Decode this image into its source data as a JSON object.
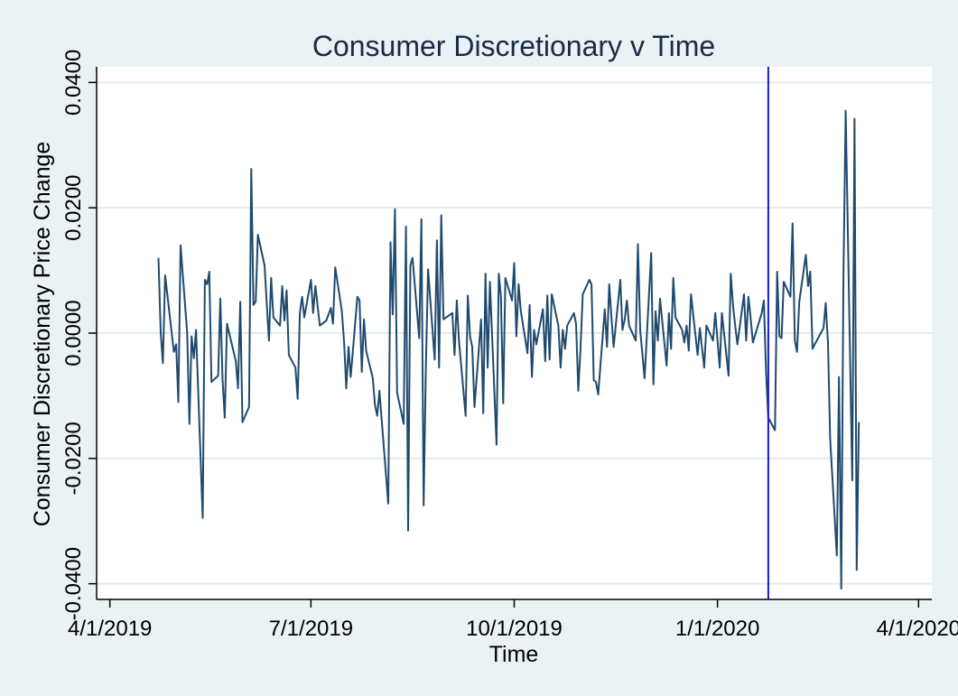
{
  "chart_data": {
    "type": "line",
    "title": "Consumer Discretionary v Time",
    "xlabel": "Time",
    "ylabel": "Consumer Discretionary Price Change",
    "x_ticks": [
      {
        "date": "2019-04-01",
        "label": "4/1/2019"
      },
      {
        "date": "2019-07-01",
        "label": "7/1/2019"
      },
      {
        "date": "2019-10-01",
        "label": "10/1/2019"
      },
      {
        "date": "2020-01-01",
        "label": "1/1/2020"
      },
      {
        "date": "2020-04-01",
        "label": "4/1/2020"
      }
    ],
    "y_ticks": [
      {
        "value": -0.04,
        "label": "-0.0400"
      },
      {
        "value": -0.02,
        "label": "-0.0200"
      },
      {
        "value": 0.0,
        "label": "0.0000"
      },
      {
        "value": 0.02,
        "label": "0.0200"
      },
      {
        "value": 0.04,
        "label": "0.0400"
      }
    ],
    "xlim": [
      "2019-03-26",
      "2020-04-07"
    ],
    "ylim": [
      -0.0425,
      0.0425
    ],
    "grid": true,
    "line_color": "#1f4a6e",
    "vline": {
      "date": "2020-01-24",
      "color": "#1a1acc"
    },
    "series": [
      {
        "points": [
          [
            "2019-04-23",
            0.012
          ],
          [
            "2019-04-24",
            0.0
          ],
          [
            "2019-04-25",
            -0.0048
          ],
          [
            "2019-04-26",
            0.0092
          ],
          [
            "2019-04-29",
            0.0
          ],
          [
            "2019-04-30",
            -0.003
          ],
          [
            "2019-05-01",
            -0.0018
          ],
          [
            "2019-05-02",
            -0.011
          ],
          [
            "2019-05-03",
            0.014
          ],
          [
            "2019-05-06",
            0.0
          ],
          [
            "2019-05-07",
            -0.0145
          ],
          [
            "2019-05-08",
            -0.0005
          ],
          [
            "2019-05-09",
            -0.004
          ],
          [
            "2019-05-10",
            0.0005
          ],
          [
            "2019-05-13",
            -0.0295
          ],
          [
            "2019-05-14",
            0.0085
          ],
          [
            "2019-05-15",
            0.0078
          ],
          [
            "2019-05-16",
            0.0098
          ],
          [
            "2019-05-17",
            -0.0078
          ],
          [
            "2019-05-20",
            -0.0068
          ],
          [
            "2019-05-21",
            0.0055
          ],
          [
            "2019-05-22",
            -0.0075
          ],
          [
            "2019-05-23",
            -0.0135
          ],
          [
            "2019-05-24",
            0.0015
          ],
          [
            "2019-05-28",
            -0.0045
          ],
          [
            "2019-05-29",
            -0.0088
          ],
          [
            "2019-05-30",
            0.005
          ],
          [
            "2019-05-31",
            -0.0142
          ],
          [
            "2019-06-03",
            -0.0118
          ],
          [
            "2019-06-04",
            0.0262
          ],
          [
            "2019-06-05",
            0.0045
          ],
          [
            "2019-06-06",
            0.005
          ],
          [
            "2019-06-07",
            0.0157
          ],
          [
            "2019-06-10",
            0.0108
          ],
          [
            "2019-06-11",
            0.0048
          ],
          [
            "2019-06-12",
            -0.0012
          ],
          [
            "2019-06-13",
            0.0088
          ],
          [
            "2019-06-14",
            0.0025
          ],
          [
            "2019-06-17",
            0.0012
          ],
          [
            "2019-06-18",
            0.0075
          ],
          [
            "2019-06-19",
            0.002
          ],
          [
            "2019-06-20",
            0.0068
          ],
          [
            "2019-06-21",
            -0.0035
          ],
          [
            "2019-06-24",
            -0.0055
          ],
          [
            "2019-06-25",
            -0.0105
          ],
          [
            "2019-06-26",
            0.0032
          ],
          [
            "2019-06-27",
            0.0058
          ],
          [
            "2019-06-28",
            0.0025
          ],
          [
            "2019-07-01",
            0.0085
          ],
          [
            "2019-07-02",
            0.0032
          ],
          [
            "2019-07-03",
            0.0075
          ],
          [
            "2019-07-05",
            0.0012
          ],
          [
            "2019-07-08",
            0.002
          ],
          [
            "2019-07-09",
            0.003
          ],
          [
            "2019-07-10",
            0.004
          ],
          [
            "2019-07-11",
            0.0015
          ],
          [
            "2019-07-12",
            0.0105
          ],
          [
            "2019-07-15",
            0.0035
          ],
          [
            "2019-07-16",
            -0.0015
          ],
          [
            "2019-07-17",
            -0.0088
          ],
          [
            "2019-07-18",
            -0.0022
          ],
          [
            "2019-07-19",
            -0.007
          ],
          [
            "2019-07-22",
            0.0058
          ],
          [
            "2019-07-23",
            0.0052
          ],
          [
            "2019-07-24",
            -0.0062
          ],
          [
            "2019-07-25",
            0.0022
          ],
          [
            "2019-07-26",
            -0.0028
          ],
          [
            "2019-07-29",
            -0.0072
          ],
          [
            "2019-07-30",
            -0.0115
          ],
          [
            "2019-07-31",
            -0.0132
          ],
          [
            "2019-08-01",
            -0.0092
          ],
          [
            "2019-08-02",
            -0.0138
          ],
          [
            "2019-08-05",
            -0.0272
          ],
          [
            "2019-08-06",
            0.0145
          ],
          [
            "2019-08-07",
            0.003
          ],
          [
            "2019-08-08",
            0.0198
          ],
          [
            "2019-08-09",
            -0.0095
          ],
          [
            "2019-08-12",
            -0.0145
          ],
          [
            "2019-08-13",
            0.017
          ],
          [
            "2019-08-14",
            -0.0315
          ],
          [
            "2019-08-15",
            0.0108
          ],
          [
            "2019-08-16",
            0.012
          ],
          [
            "2019-08-19",
            -0.0008
          ],
          [
            "2019-08-20",
            0.0182
          ],
          [
            "2019-08-21",
            -0.0275
          ],
          [
            "2019-08-22",
            -0.0058
          ],
          [
            "2019-08-23",
            0.0102
          ],
          [
            "2019-08-26",
            -0.0042
          ],
          [
            "2019-08-27",
            0.0148
          ],
          [
            "2019-08-28",
            -0.0055
          ],
          [
            "2019-08-29",
            0.0188
          ],
          [
            "2019-08-30",
            0.0022
          ],
          [
            "2019-09-03",
            0.0032
          ],
          [
            "2019-09-04",
            -0.0035
          ],
          [
            "2019-09-05",
            0.0052
          ],
          [
            "2019-09-06",
            -0.0012
          ],
          [
            "2019-09-09",
            -0.0132
          ],
          [
            "2019-09-10",
            0.006
          ],
          [
            "2019-09-11",
            -0.0005
          ],
          [
            "2019-09-12",
            -0.0022
          ],
          [
            "2019-09-13",
            -0.0118
          ],
          [
            "2019-09-16",
            0.0022
          ],
          [
            "2019-09-17",
            -0.0128
          ],
          [
            "2019-09-18",
            0.0095
          ],
          [
            "2019-09-19",
            -0.0055
          ],
          [
            "2019-09-20",
            0.0082
          ],
          [
            "2019-09-23",
            -0.0178
          ],
          [
            "2019-09-24",
            0.0095
          ],
          [
            "2019-09-25",
            0.0058
          ],
          [
            "2019-09-26",
            -0.0112
          ],
          [
            "2019-09-27",
            0.0088
          ],
          [
            "2019-09-30",
            0.0052
          ],
          [
            "2019-10-01",
            0.0112
          ],
          [
            "2019-10-02",
            -0.0005
          ],
          [
            "2019-10-03",
            0.0078
          ],
          [
            "2019-10-04",
            0.0035
          ],
          [
            "2019-10-07",
            -0.0032
          ],
          [
            "2019-10-08",
            0.0045
          ],
          [
            "2019-10-09",
            -0.007
          ],
          [
            "2019-10-10",
            0.0005
          ],
          [
            "2019-10-11",
            -0.0018
          ],
          [
            "2019-10-14",
            0.0038
          ],
          [
            "2019-10-15",
            -0.0045
          ],
          [
            "2019-10-16",
            0.006
          ],
          [
            "2019-10-17",
            -0.0042
          ],
          [
            "2019-10-18",
            0.0062
          ],
          [
            "2019-10-21",
            0.0012
          ],
          [
            "2019-10-22",
            -0.0055
          ],
          [
            "2019-10-23",
            0.0005
          ],
          [
            "2019-10-24",
            -0.0025
          ],
          [
            "2019-10-25",
            0.0012
          ],
          [
            "2019-10-28",
            0.0032
          ],
          [
            "2019-10-29",
            0.0015
          ],
          [
            "2019-10-30",
            -0.0092
          ],
          [
            "2019-10-31",
            -0.0025
          ],
          [
            "2019-11-01",
            0.0062
          ],
          [
            "2019-11-04",
            0.0085
          ],
          [
            "2019-11-05",
            0.0078
          ],
          [
            "2019-11-06",
            -0.0075
          ],
          [
            "2019-11-07",
            -0.0078
          ],
          [
            "2019-11-08",
            -0.0098
          ],
          [
            "2019-11-11",
            0.0038
          ],
          [
            "2019-11-12",
            -0.0022
          ],
          [
            "2019-11-13",
            0.0078
          ],
          [
            "2019-11-14",
            0.0025
          ],
          [
            "2019-11-15",
            -0.0022
          ],
          [
            "2019-11-18",
            0.0085
          ],
          [
            "2019-11-19",
            0.0005
          ],
          [
            "2019-11-20",
            0.0022
          ],
          [
            "2019-11-21",
            0.0052
          ],
          [
            "2019-11-22",
            0.0012
          ],
          [
            "2019-11-25",
            -0.0012
          ],
          [
            "2019-11-26",
            0.0142
          ],
          [
            "2019-11-27",
            0.0005
          ],
          [
            "2019-11-29",
            -0.0072
          ],
          [
            "2019-12-02",
            0.0128
          ],
          [
            "2019-12-03",
            -0.0082
          ],
          [
            "2019-12-04",
            0.0035
          ],
          [
            "2019-12-05",
            -0.0012
          ],
          [
            "2019-12-06",
            0.0055
          ],
          [
            "2019-12-09",
            -0.0052
          ],
          [
            "2019-12-10",
            0.0032
          ],
          [
            "2019-12-11",
            -0.0025
          ],
          [
            "2019-12-12",
            0.0088
          ],
          [
            "2019-12-13",
            0.0025
          ],
          [
            "2019-12-16",
            0.0005
          ],
          [
            "2019-12-17",
            -0.0015
          ],
          [
            "2019-12-18",
            0.0012
          ],
          [
            "2019-12-19",
            -0.0028
          ],
          [
            "2019-12-20",
            0.0062
          ],
          [
            "2019-12-23",
            -0.0035
          ],
          [
            "2019-12-24",
            0.0008
          ],
          [
            "2019-12-26",
            -0.0055
          ],
          [
            "2019-12-27",
            0.0012
          ],
          [
            "2019-12-30",
            -0.0012
          ],
          [
            "2019-12-31",
            0.0032
          ],
          [
            "2020-01-02",
            -0.0055
          ],
          [
            "2020-01-03",
            0.0032
          ],
          [
            "2020-01-06",
            -0.0068
          ],
          [
            "2020-01-07",
            0.0095
          ],
          [
            "2020-01-08",
            0.0045
          ],
          [
            "2020-01-09",
            0.0012
          ],
          [
            "2020-01-10",
            -0.0018
          ],
          [
            "2020-01-13",
            0.0062
          ],
          [
            "2020-01-14",
            -0.0012
          ],
          [
            "2020-01-15",
            0.0058
          ],
          [
            "2020-01-16",
            0.0025
          ],
          [
            "2020-01-17",
            -0.0015
          ],
          [
            "2020-01-21",
            0.0032
          ],
          [
            "2020-01-22",
            0.0052
          ],
          [
            "2020-01-23",
            -0.0065
          ],
          [
            "2020-01-24",
            -0.0135
          ],
          [
            "2020-01-27",
            -0.0155
          ],
          [
            "2020-01-28",
            0.0098
          ],
          [
            "2020-01-29",
            -0.0005
          ],
          [
            "2020-01-30",
            -0.0008
          ],
          [
            "2020-01-31",
            0.0082
          ],
          [
            "2020-02-03",
            0.0058
          ],
          [
            "2020-02-04",
            0.0175
          ],
          [
            "2020-02-05",
            -0.0012
          ],
          [
            "2020-02-06",
            -0.003
          ],
          [
            "2020-02-07",
            0.005
          ],
          [
            "2020-02-10",
            0.0125
          ],
          [
            "2020-02-11",
            0.0075
          ],
          [
            "2020-02-12",
            0.0098
          ],
          [
            "2020-02-13",
            -0.0025
          ],
          [
            "2020-02-14",
            -0.0018
          ],
          [
            "2020-02-18",
            0.0008
          ],
          [
            "2020-02-19",
            0.0048
          ],
          [
            "2020-02-20",
            -0.0015
          ],
          [
            "2020-02-21",
            -0.0168
          ],
          [
            "2020-02-24",
            -0.0355
          ],
          [
            "2020-02-25",
            -0.007
          ],
          [
            "2020-02-26",
            -0.0408
          ],
          [
            "2020-02-27",
            0.0088
          ],
          [
            "2020-02-28",
            0.0355
          ],
          [
            "2020-03-02",
            -0.0235
          ],
          [
            "2020-03-03",
            0.0342
          ],
          [
            "2020-03-04",
            -0.0378
          ],
          [
            "2020-03-05",
            -0.0142
          ]
        ]
      }
    ]
  }
}
